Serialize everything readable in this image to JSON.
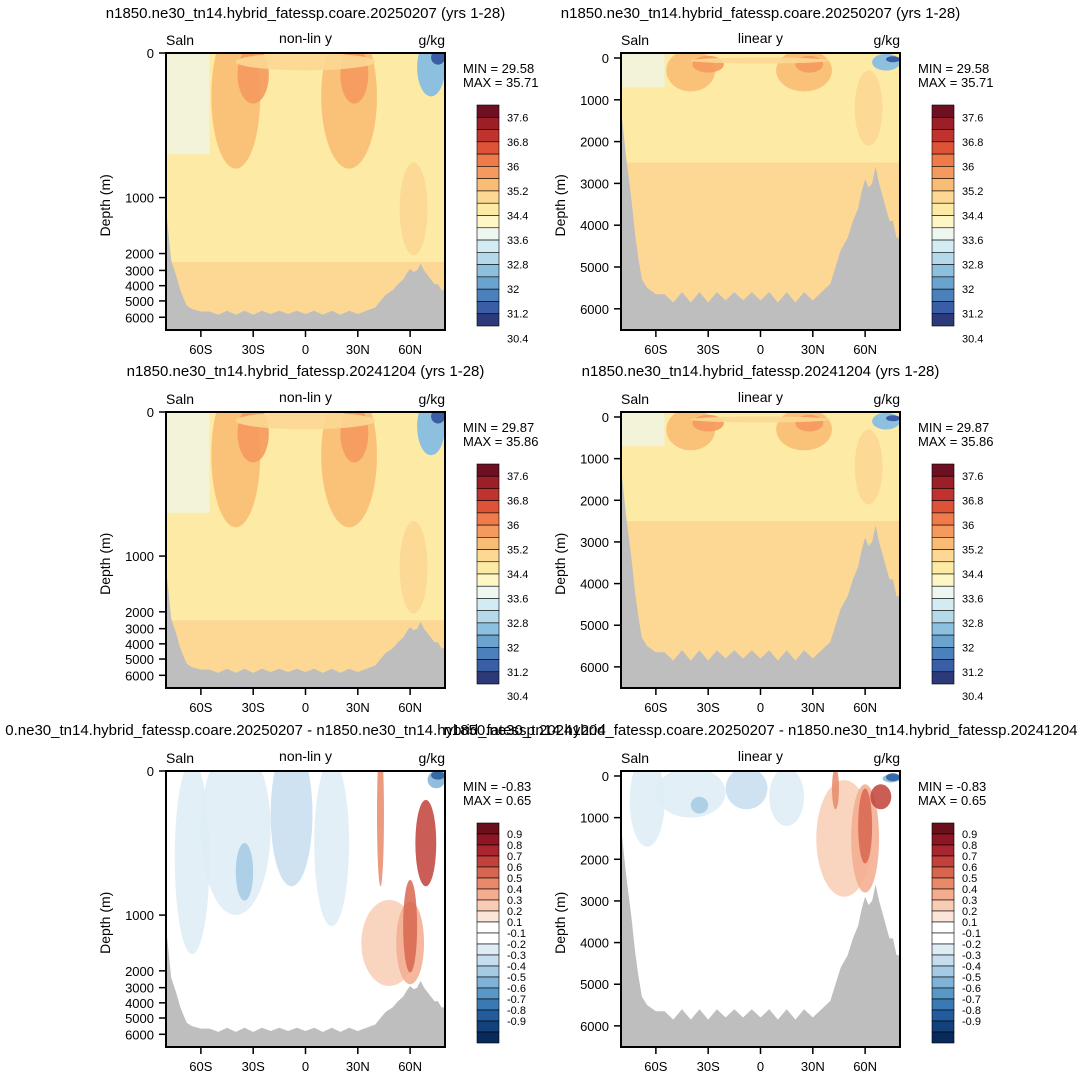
{
  "chart_data": [
    {
      "type": "heatmap",
      "title": "n1850.ne30_tn14.hybrid_fatessp.coare.20250207 (yrs 1-28)",
      "left_label": "Saln",
      "center_label": "non-lin y",
      "right_label": "g/kg",
      "ylabel": "Depth (m)",
      "x_ticks": [
        "60S",
        "30S",
        "0",
        "30N",
        "60N"
      ],
      "y_ticks": [
        "0",
        "1000",
        "2000",
        "3000",
        "4000",
        "5000",
        "6000"
      ],
      "min_text": "MIN =  29.58",
      "max_text": "MAX =  35.71",
      "colorbar": [
        "37.6",
        "36.8",
        "36",
        "35.2",
        "34.4",
        "33.6",
        "32.8",
        "32",
        "31.2",
        "30.4"
      ]
    },
    {
      "type": "heatmap",
      "title": "n1850.ne30_tn14.hybrid_fatessp.coare.20250207 (yrs 1-28)",
      "left_label": "Saln",
      "center_label": "linear y",
      "right_label": "g/kg",
      "ylabel": "Depth (m)",
      "x_ticks": [
        "60S",
        "30S",
        "0",
        "30N",
        "60N"
      ],
      "y_ticks": [
        "0",
        "1000",
        "2000",
        "3000",
        "4000",
        "5000",
        "6000"
      ],
      "min_text": "MIN =  29.58",
      "max_text": "MAX =  35.71",
      "colorbar": [
        "37.6",
        "36.8",
        "36",
        "35.2",
        "34.4",
        "33.6",
        "32.8",
        "32",
        "31.2",
        "30.4"
      ]
    },
    {
      "type": "heatmap",
      "title": "n1850.ne30_tn14.hybrid_fatessp.20241204 (yrs 1-28)",
      "left_label": "Saln",
      "center_label": "non-lin y",
      "right_label": "g/kg",
      "ylabel": "Depth (m)",
      "x_ticks": [
        "60S",
        "30S",
        "0",
        "30N",
        "60N"
      ],
      "y_ticks": [
        "0",
        "1000",
        "2000",
        "3000",
        "4000",
        "5000",
        "6000"
      ],
      "min_text": "MIN =  29.87",
      "max_text": "MAX =  35.86",
      "colorbar": [
        "37.6",
        "36.8",
        "36",
        "35.2",
        "34.4",
        "33.6",
        "32.8",
        "32",
        "31.2",
        "30.4"
      ]
    },
    {
      "type": "heatmap",
      "title": "n1850.ne30_tn14.hybrid_fatessp.20241204 (yrs 1-28)",
      "left_label": "Saln",
      "center_label": "linear y",
      "right_label": "g/kg",
      "ylabel": "Depth (m)",
      "x_ticks": [
        "60S",
        "30S",
        "0",
        "30N",
        "60N"
      ],
      "y_ticks": [
        "0",
        "1000",
        "2000",
        "3000",
        "4000",
        "5000",
        "6000"
      ],
      "min_text": "MIN =  29.87",
      "max_text": "MAX =  35.86",
      "colorbar": [
        "37.6",
        "36.8",
        "36",
        "35.2",
        "34.4",
        "33.6",
        "32.8",
        "32",
        "31.2",
        "30.4"
      ]
    },
    {
      "type": "heatmap",
      "title": "0.ne30_tn14.hybrid_fatessp.coare.20250207 - n1850.ne30_tn14.hybrid_fatessp.20241204",
      "left_label": "Saln",
      "center_label": "non-lin y",
      "right_label": "g/kg",
      "ylabel": "Depth (m)",
      "x_ticks": [
        "60S",
        "30S",
        "0",
        "30N",
        "60N"
      ],
      "y_ticks": [
        "0",
        "1000",
        "2000",
        "3000",
        "4000",
        "5000",
        "6000"
      ],
      "min_text": "MIN =  -0.83",
      "max_text": "MAX =   0.65",
      "colorbar": [
        "0.9",
        "0.8",
        "0.7",
        "0.6",
        "0.5",
        "0.4",
        "0.3",
        "0.2",
        "0.1",
        "-0.1",
        "-0.2",
        "-0.3",
        "-0.4",
        "-0.5",
        "-0.6",
        "-0.7",
        "-0.8",
        "-0.9"
      ]
    },
    {
      "type": "heatmap",
      "title": "n1850.ne30_tn14.hybrid_fatessp.coare.20250207 - n1850.ne30_tn14.hybrid_fatessp.20241204",
      "left_label": "Saln",
      "center_label": "linear y",
      "right_label": "g/kg",
      "ylabel": "Depth (m)",
      "x_ticks": [
        "60S",
        "30S",
        "0",
        "30N",
        "60N"
      ],
      "y_ticks": [
        "0",
        "1000",
        "2000",
        "3000",
        "4000",
        "5000",
        "6000"
      ],
      "min_text": "MIN =  -0.83",
      "max_text": "MAX =   0.65",
      "colorbar": [
        "0.9",
        "0.8",
        "0.7",
        "0.6",
        "0.5",
        "0.4",
        "0.3",
        "0.2",
        "0.1",
        "-0.1",
        "-0.2",
        "-0.3",
        "-0.4",
        "-0.5",
        "-0.6",
        "-0.7",
        "-0.8",
        "-0.9"
      ]
    }
  ],
  "palettes": {
    "saln": [
      "#6e0f22",
      "#9c1e27",
      "#c0322d",
      "#de5238",
      "#ef7a4a",
      "#f59a5e",
      "#f9bc74",
      "#fcd894",
      "#fdeaa4",
      "#fef6c4",
      "#eef6f0",
      "#d3ebf3",
      "#b3d9ea",
      "#8cc0de",
      "#6ba3cf",
      "#4b80bb",
      "#3a5ea6",
      "#2c3a7a"
    ],
    "diff": [
      "#6a0f1c",
      "#8e1624",
      "#a92530",
      "#c2413a",
      "#d76650",
      "#e8896a",
      "#f3ac8e",
      "#f8ccb4",
      "#fbe5d8",
      "#ffffff",
      "#ffffff",
      "#deecf5",
      "#c5ddee",
      "#a5cae4",
      "#7fb2d6",
      "#5897c6",
      "#3a7ab4",
      "#235c9c",
      "#12427c",
      "#082a5a"
    ],
    "land": "#bebebe"
  }
}
